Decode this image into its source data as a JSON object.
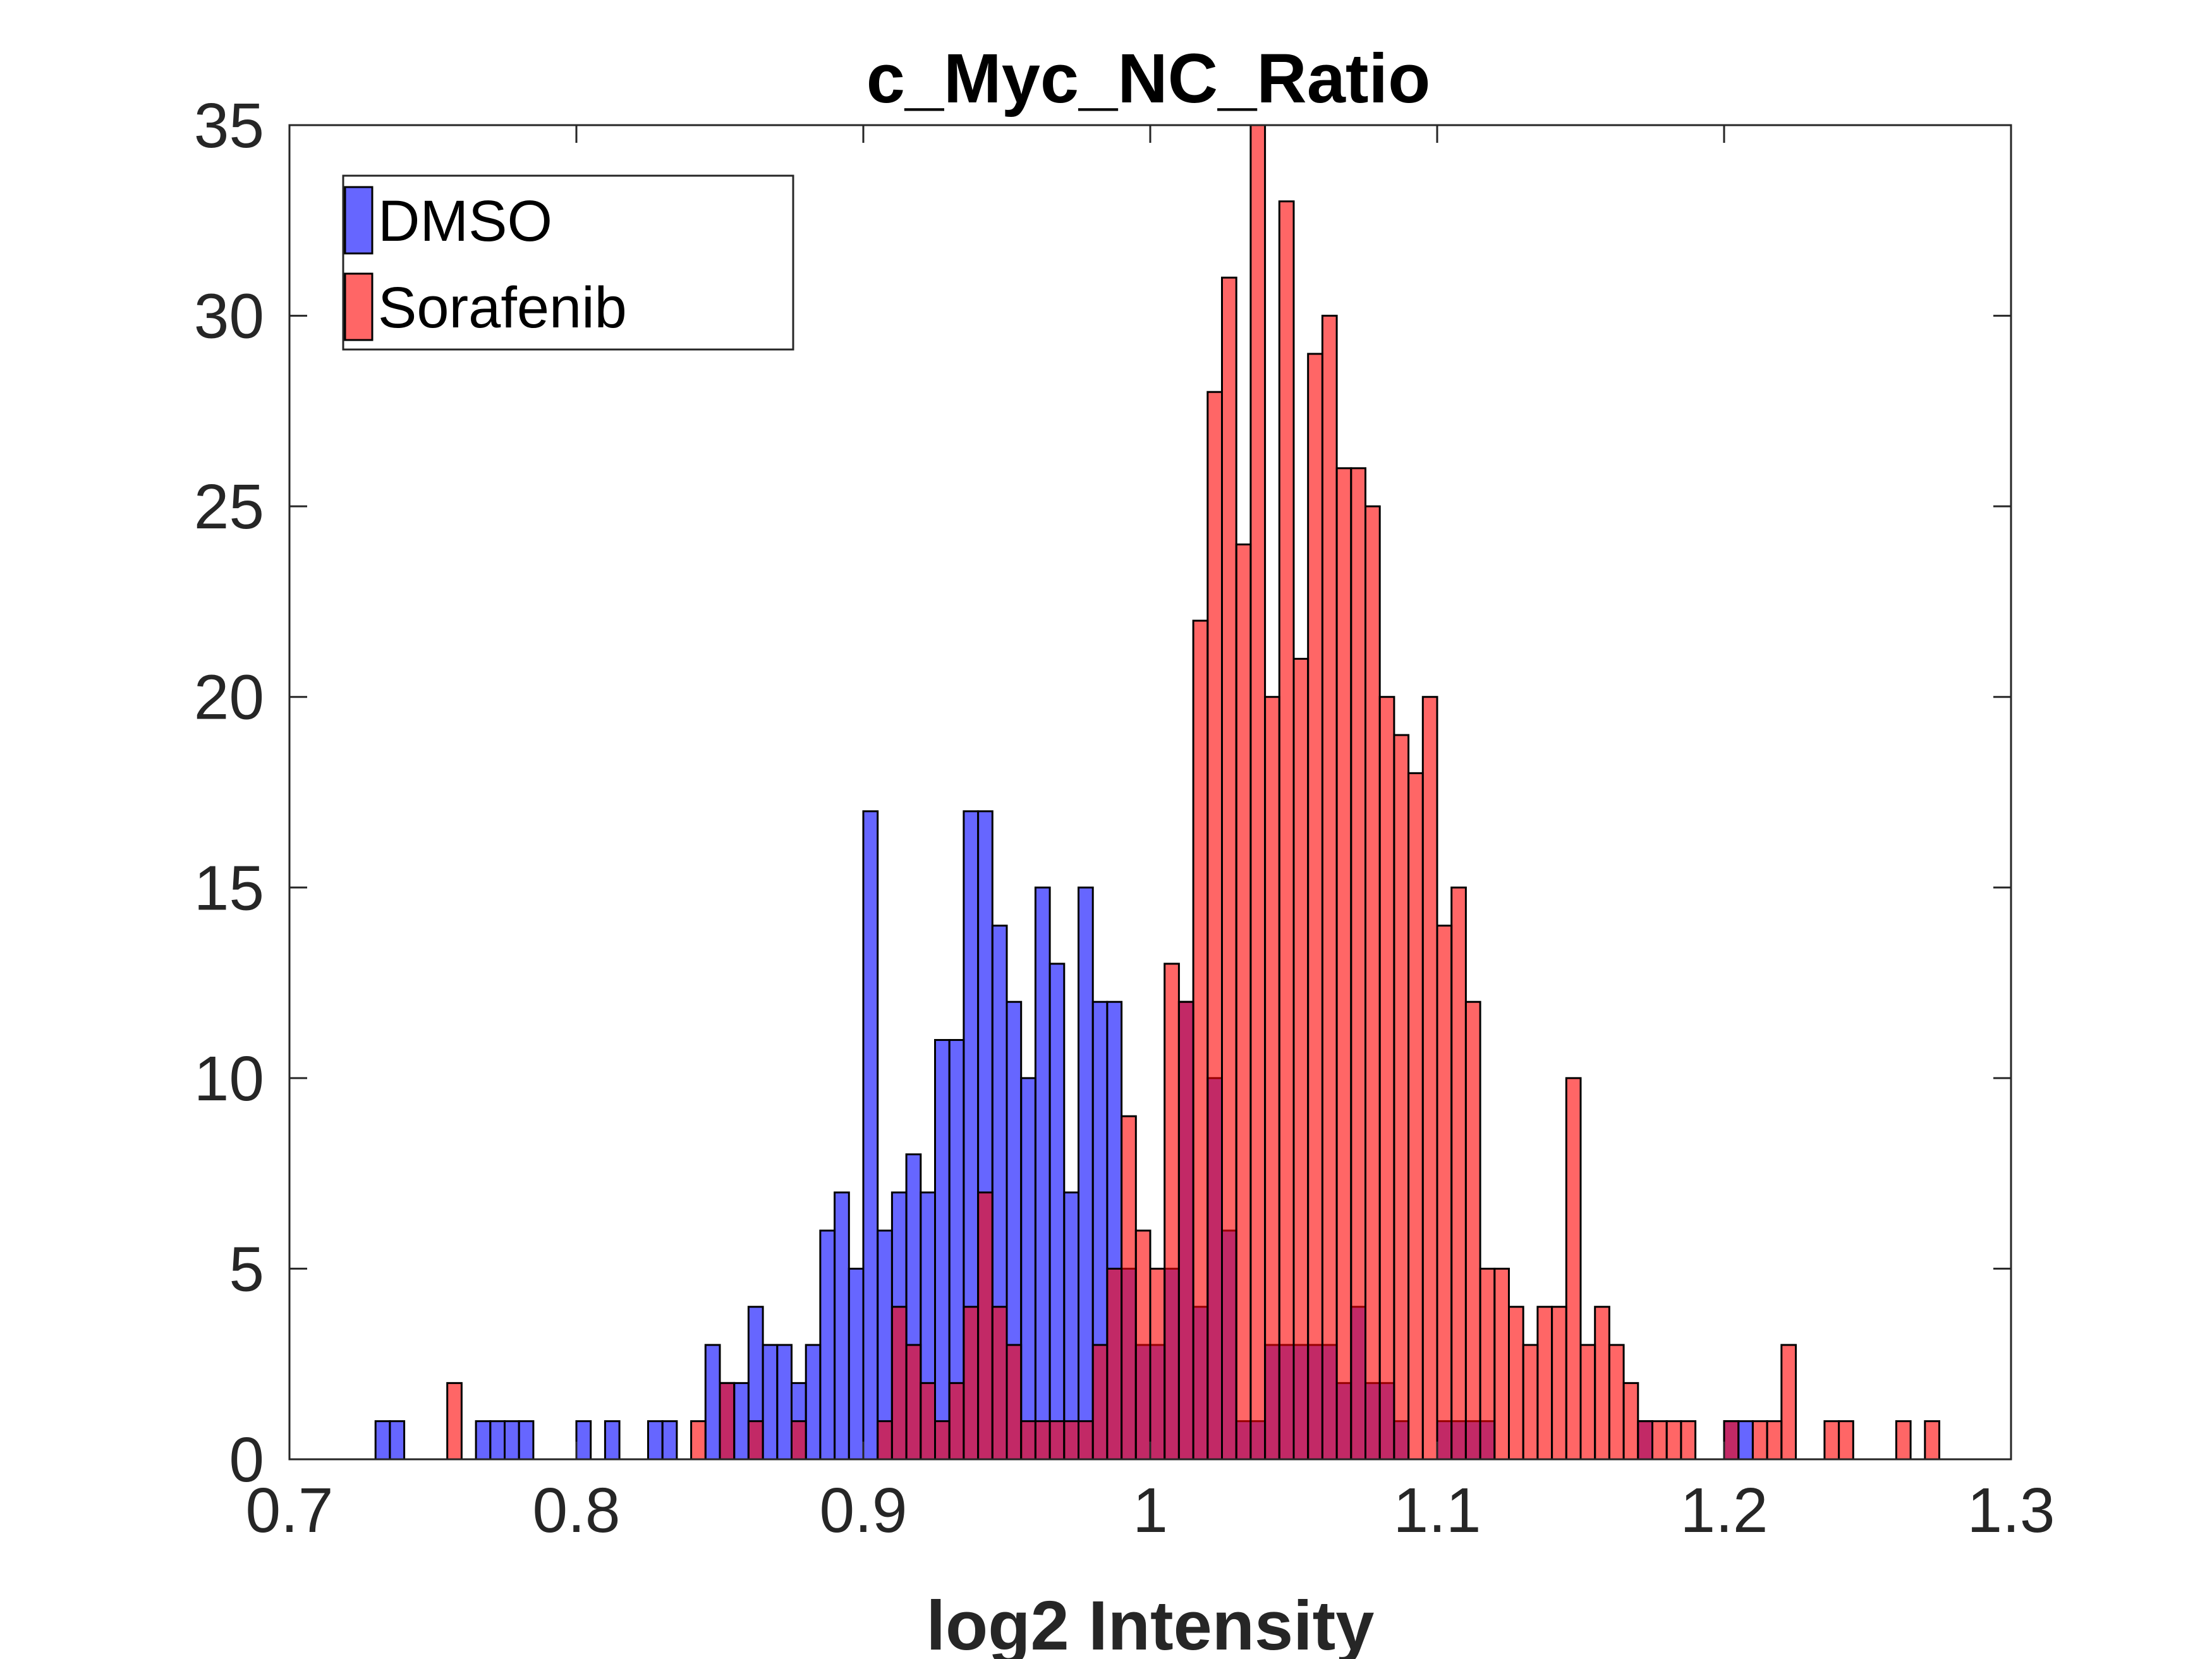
{
  "chart_data": {
    "type": "bar",
    "subtype": "overlaid-histogram",
    "title": "c_Myc_NC_Ratio",
    "xlabel": "log2 Intensity",
    "ylabel": "",
    "xlim": [
      0.7,
      1.3
    ],
    "ylim": [
      0,
      35
    ],
    "xticks": [
      "0.7",
      "0.8",
      "0.9",
      "1",
      "1.1",
      "1.2",
      "1.3"
    ],
    "yticks": [
      "0",
      "5",
      "10",
      "15",
      "20",
      "25",
      "30",
      "35"
    ],
    "grid": false,
    "legend_position": "top-left",
    "bin_width": 0.005,
    "series": [
      {
        "name": "DMSO",
        "color": "#0000ff",
        "opacity": 0.6,
        "bins": [
          [
            0.73,
            1
          ],
          [
            0.735,
            1
          ],
          [
            0.765,
            1
          ],
          [
            0.77,
            1
          ],
          [
            0.775,
            1
          ],
          [
            0.78,
            1
          ],
          [
            0.8,
            1
          ],
          [
            0.81,
            1
          ],
          [
            0.825,
            1
          ],
          [
            0.83,
            1
          ],
          [
            0.845,
            3
          ],
          [
            0.85,
            2
          ],
          [
            0.855,
            2
          ],
          [
            0.86,
            4
          ],
          [
            0.865,
            3
          ],
          [
            0.87,
            3
          ],
          [
            0.875,
            2
          ],
          [
            0.88,
            3
          ],
          [
            0.885,
            6
          ],
          [
            0.89,
            7
          ],
          [
            0.895,
            5
          ],
          [
            0.9,
            17
          ],
          [
            0.905,
            6
          ],
          [
            0.91,
            7
          ],
          [
            0.915,
            8
          ],
          [
            0.92,
            7
          ],
          [
            0.925,
            11
          ],
          [
            0.93,
            11
          ],
          [
            0.935,
            17
          ],
          [
            0.94,
            17
          ],
          [
            0.945,
            14
          ],
          [
            0.95,
            12
          ],
          [
            0.955,
            10
          ],
          [
            0.96,
            15
          ],
          [
            0.965,
            13
          ],
          [
            0.97,
            7
          ],
          [
            0.975,
            15
          ],
          [
            0.98,
            12
          ],
          [
            0.985,
            12
          ],
          [
            0.99,
            5
          ],
          [
            0.995,
            3
          ],
          [
            1.0,
            3
          ],
          [
            1.005,
            5
          ],
          [
            1.01,
            12
          ],
          [
            1.015,
            4
          ],
          [
            1.02,
            10
          ],
          [
            1.025,
            6
          ],
          [
            1.03,
            1
          ],
          [
            1.035,
            1
          ],
          [
            1.04,
            3
          ],
          [
            1.045,
            3
          ],
          [
            1.05,
            3
          ],
          [
            1.055,
            3
          ],
          [
            1.06,
            3
          ],
          [
            1.065,
            2
          ],
          [
            1.07,
            4
          ],
          [
            1.075,
            2
          ],
          [
            1.08,
            2
          ],
          [
            1.085,
            1
          ],
          [
            1.1,
            1
          ],
          [
            1.105,
            1
          ],
          [
            1.11,
            1
          ],
          [
            1.115,
            1
          ],
          [
            1.17,
            1
          ],
          [
            1.2,
            1
          ],
          [
            1.205,
            1
          ]
        ]
      },
      {
        "name": "Sorafenib",
        "color": "#ff0000",
        "opacity": 0.6,
        "bins": [
          [
            0.755,
            2
          ],
          [
            0.84,
            1
          ],
          [
            0.85,
            2
          ],
          [
            0.86,
            1
          ],
          [
            0.875,
            1
          ],
          [
            0.905,
            1
          ],
          [
            0.91,
            4
          ],
          [
            0.915,
            3
          ],
          [
            0.92,
            2
          ],
          [
            0.925,
            1
          ],
          [
            0.93,
            2
          ],
          [
            0.935,
            4
          ],
          [
            0.94,
            7
          ],
          [
            0.945,
            4
          ],
          [
            0.95,
            3
          ],
          [
            0.955,
            1
          ],
          [
            0.96,
            1
          ],
          [
            0.965,
            1
          ],
          [
            0.97,
            1
          ],
          [
            0.975,
            1
          ],
          [
            0.98,
            3
          ],
          [
            0.985,
            5
          ],
          [
            0.99,
            9
          ],
          [
            0.995,
            6
          ],
          [
            1.0,
            5
          ],
          [
            1.005,
            13
          ],
          [
            1.01,
            12
          ],
          [
            1.015,
            22
          ],
          [
            1.02,
            28
          ],
          [
            1.025,
            31
          ],
          [
            1.03,
            24
          ],
          [
            1.035,
            35
          ],
          [
            1.04,
            20
          ],
          [
            1.045,
            33
          ],
          [
            1.05,
            21
          ],
          [
            1.055,
            29
          ],
          [
            1.06,
            30
          ],
          [
            1.065,
            26
          ],
          [
            1.07,
            26
          ],
          [
            1.075,
            25
          ],
          [
            1.08,
            20
          ],
          [
            1.085,
            19
          ],
          [
            1.09,
            18
          ],
          [
            1.095,
            20
          ],
          [
            1.1,
            14
          ],
          [
            1.105,
            15
          ],
          [
            1.11,
            12
          ],
          [
            1.115,
            5
          ],
          [
            1.12,
            5
          ],
          [
            1.125,
            4
          ],
          [
            1.13,
            3
          ],
          [
            1.135,
            4
          ],
          [
            1.14,
            4
          ],
          [
            1.145,
            10
          ],
          [
            1.15,
            3
          ],
          [
            1.155,
            4
          ],
          [
            1.16,
            3
          ],
          [
            1.165,
            2
          ],
          [
            1.17,
            1
          ],
          [
            1.175,
            1
          ],
          [
            1.18,
            1
          ],
          [
            1.185,
            1
          ],
          [
            1.2,
            1
          ],
          [
            1.21,
            1
          ],
          [
            1.215,
            1
          ],
          [
            1.22,
            3
          ],
          [
            1.235,
            1
          ],
          [
            1.24,
            1
          ],
          [
            1.26,
            1
          ],
          [
            1.27,
            1
          ]
        ]
      }
    ]
  }
}
